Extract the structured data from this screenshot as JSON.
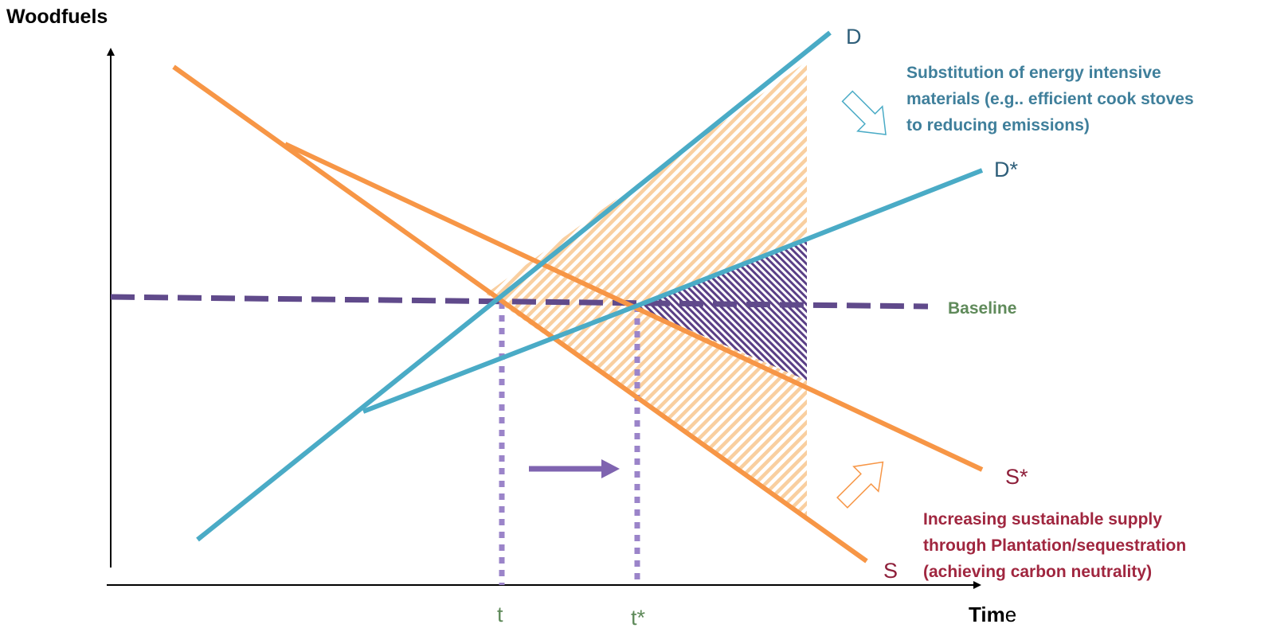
{
  "axes": {
    "y_label": "Woodfuels",
    "x_label_bold": "Tim",
    "x_label_rest": "e"
  },
  "lines": {
    "D": "D",
    "D_star": "D*",
    "S": "S",
    "S_star": "S*",
    "baseline": "Baseline"
  },
  "ticks": {
    "t": "t",
    "t_star": "t*"
  },
  "annotations": {
    "demand_lines": [
      "Substitution of energy intensive",
      "materials (e.g.. efficient cook stoves",
      "to reducing emissions)"
    ],
    "supply_lines": [
      "Increasing sustainable supply",
      "through Plantation/sequestration",
      "(achieving carbon neutrality)"
    ]
  },
  "colors": {
    "demand": "#4aabc6",
    "supply": "#f79646",
    "baseline": "#604a8b",
    "baseline_label": "#5f8a5a",
    "tick_label": "#5f8a5a",
    "demand_text": "#3f7f9b",
    "supply_text": "#a0263f",
    "line_label_demand": "#2f5f7a",
    "line_label_supply": "#8e1f3a",
    "hatch_orange": "#fad9b4",
    "hatch_purple": "#5a3f86"
  }
}
